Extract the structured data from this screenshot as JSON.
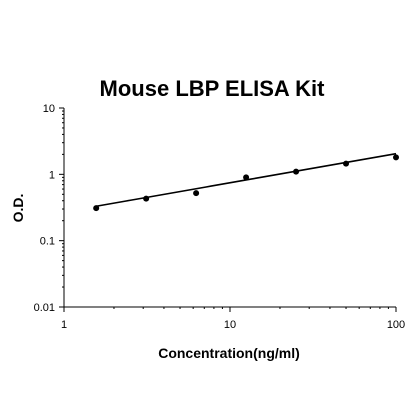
{
  "chart_data": {
    "type": "scatter",
    "title": "Mouse LBP ELISA Kit",
    "xlabel": "Concentration(ng/ml)",
    "ylabel": "O.D.",
    "x_scale": "log",
    "y_scale": "log",
    "xlim": [
      1,
      100
    ],
    "ylim": [
      0.01,
      10
    ],
    "x_ticks": [
      {
        "value": 1,
        "label": "1"
      },
      {
        "value": 10,
        "label": "10"
      },
      {
        "value": 100,
        "label": "100"
      }
    ],
    "y_ticks": [
      {
        "value": 0.01,
        "label": "0.01"
      },
      {
        "value": 0.1,
        "label": "0.1"
      },
      {
        "value": 1,
        "label": "1"
      },
      {
        "value": 10,
        "label": "10"
      }
    ],
    "grid": false,
    "legend": "none",
    "series": [
      {
        "x": [
          1.5625,
          3.125,
          6.25,
          12.5,
          25,
          50,
          100
        ],
        "y": [
          0.31,
          0.43,
          0.52,
          0.9,
          1.1,
          1.45,
          1.8
        ]
      }
    ],
    "fit_line": {
      "x": [
        1.5625,
        100
      ],
      "y": [
        0.33,
        2.05
      ]
    },
    "colors": {
      "points": "#000000",
      "line": "#000000",
      "axes": "#000000"
    }
  }
}
